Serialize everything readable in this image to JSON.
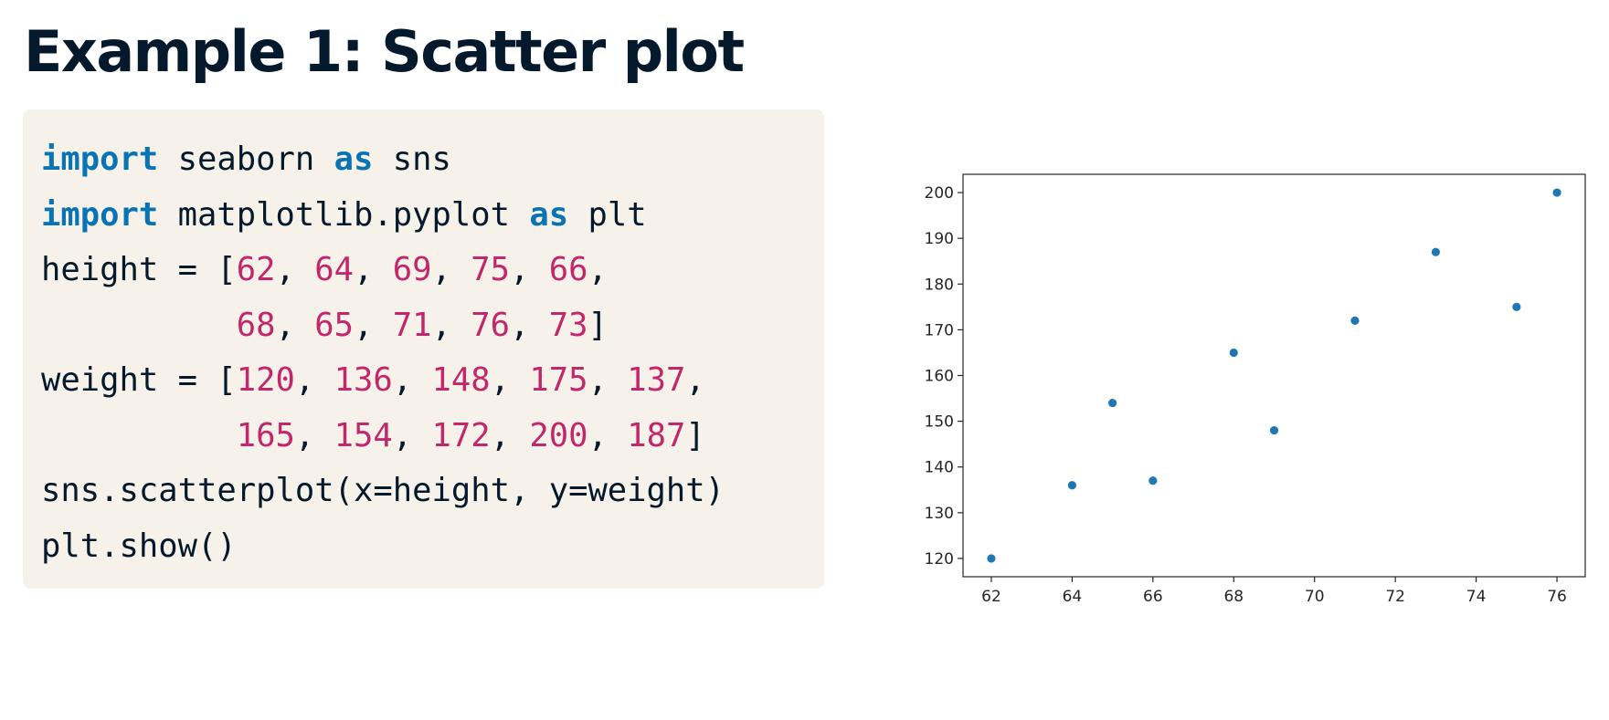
{
  "title": "Example 1: Scatter plot",
  "code": {
    "lines": [
      [
        {
          "t": "import",
          "k": "kw"
        },
        {
          "t": " seaborn ",
          "k": "tx"
        },
        {
          "t": "as",
          "k": "kw"
        },
        {
          "t": " sns",
          "k": "tx"
        }
      ],
      [
        {
          "t": "import",
          "k": "kw"
        },
        {
          "t": " matplotlib.pyplot ",
          "k": "tx"
        },
        {
          "t": "as",
          "k": "kw"
        },
        {
          "t": " plt",
          "k": "tx"
        }
      ],
      [
        {
          "t": "height = [",
          "k": "tx"
        },
        {
          "t": "62",
          "k": "num"
        },
        {
          "t": ", ",
          "k": "tx"
        },
        {
          "t": "64",
          "k": "num"
        },
        {
          "t": ", ",
          "k": "tx"
        },
        {
          "t": "69",
          "k": "num"
        },
        {
          "t": ", ",
          "k": "tx"
        },
        {
          "t": "75",
          "k": "num"
        },
        {
          "t": ", ",
          "k": "tx"
        },
        {
          "t": "66",
          "k": "num"
        },
        {
          "t": ",",
          "k": "tx"
        }
      ],
      [
        {
          "t": "          ",
          "k": "tx"
        },
        {
          "t": "68",
          "k": "num"
        },
        {
          "t": ", ",
          "k": "tx"
        },
        {
          "t": "65",
          "k": "num"
        },
        {
          "t": ", ",
          "k": "tx"
        },
        {
          "t": "71",
          "k": "num"
        },
        {
          "t": ", ",
          "k": "tx"
        },
        {
          "t": "76",
          "k": "num"
        },
        {
          "t": ", ",
          "k": "tx"
        },
        {
          "t": "73",
          "k": "num"
        },
        {
          "t": "]",
          "k": "tx"
        }
      ],
      [
        {
          "t": "weight = [",
          "k": "tx"
        },
        {
          "t": "120",
          "k": "num"
        },
        {
          "t": ", ",
          "k": "tx"
        },
        {
          "t": "136",
          "k": "num"
        },
        {
          "t": ", ",
          "k": "tx"
        },
        {
          "t": "148",
          "k": "num"
        },
        {
          "t": ", ",
          "k": "tx"
        },
        {
          "t": "175",
          "k": "num"
        },
        {
          "t": ", ",
          "k": "tx"
        },
        {
          "t": "137",
          "k": "num"
        },
        {
          "t": ",",
          "k": "tx"
        }
      ],
      [
        {
          "t": "          ",
          "k": "tx"
        },
        {
          "t": "165",
          "k": "num"
        },
        {
          "t": ", ",
          "k": "tx"
        },
        {
          "t": "154",
          "k": "num"
        },
        {
          "t": ", ",
          "k": "tx"
        },
        {
          "t": "172",
          "k": "num"
        },
        {
          "t": ", ",
          "k": "tx"
        },
        {
          "t": "200",
          "k": "num"
        },
        {
          "t": ", ",
          "k": "tx"
        },
        {
          "t": "187",
          "k": "num"
        },
        {
          "t": "]",
          "k": "tx"
        }
      ],
      [
        {
          "t": "sns.scatterplot(x=height, y=weight)",
          "k": "tx"
        }
      ],
      [
        {
          "t": "plt.show()",
          "k": "tx"
        }
      ]
    ]
  },
  "colors": {
    "keyword": "#0a73b4",
    "number": "#c2276c",
    "text": "#05192d",
    "code_background": "#f6f2ea",
    "marker": "#1f77b4"
  },
  "chart_data": {
    "type": "scatter",
    "x": [
      62,
      64,
      69,
      75,
      66,
      68,
      65,
      71,
      76,
      73
    ],
    "y": [
      120,
      136,
      148,
      175,
      137,
      165,
      154,
      172,
      200,
      187
    ],
    "title": "",
    "xlabel": "",
    "ylabel": "",
    "xticks": [
      62,
      64,
      66,
      68,
      70,
      72,
      74,
      76
    ],
    "yticks": [
      120,
      130,
      140,
      150,
      160,
      170,
      180,
      190,
      200
    ],
    "xlim": [
      61.3,
      76.7
    ],
    "ylim": [
      116,
      204
    ],
    "grid": false,
    "legend": "none",
    "marker_color": "#1f77b4"
  }
}
